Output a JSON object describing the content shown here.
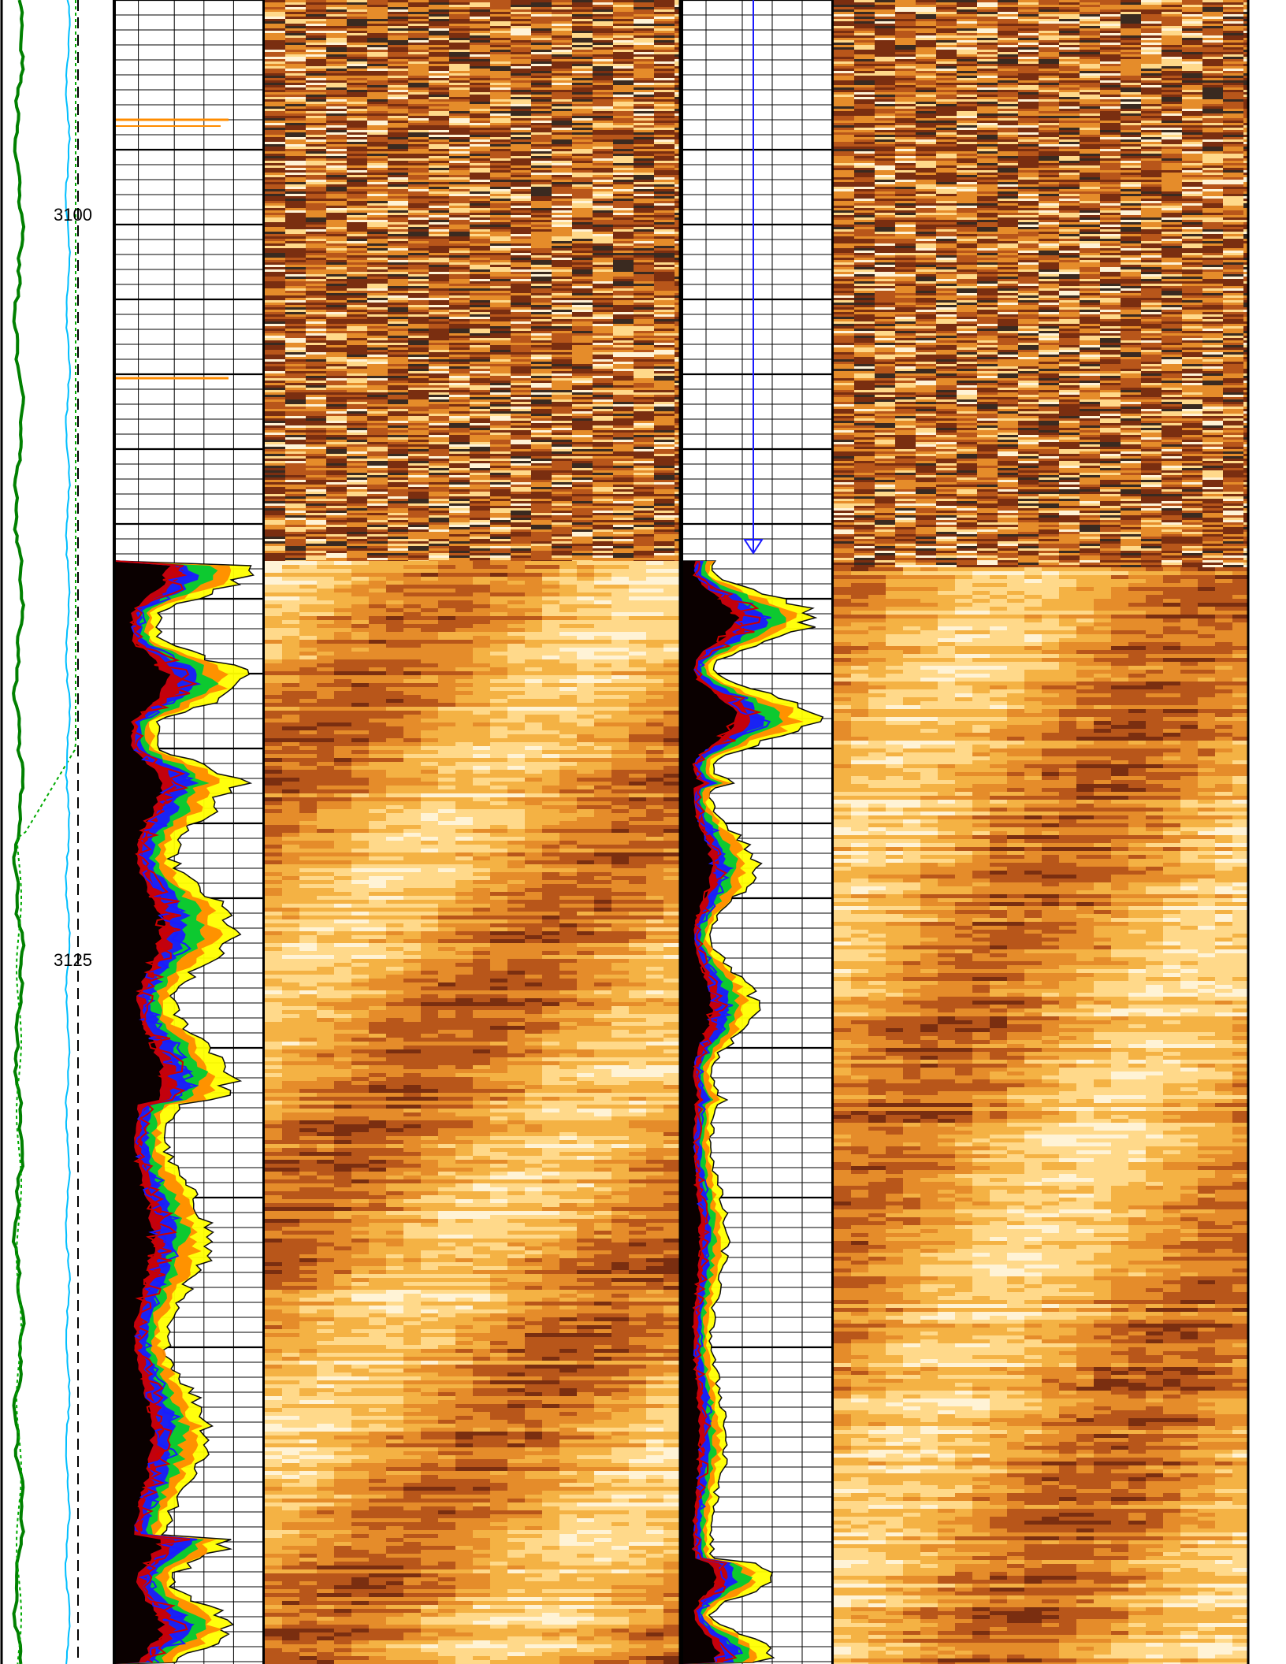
{
  "chart_data": {
    "type": "well-log",
    "depth_axis": {
      "direction": "down",
      "tick_labels": [
        "3100",
        "3125"
      ],
      "depth_range": [
        3093,
        3149
      ]
    },
    "tracks": [
      {
        "id": "curves-left",
        "kind": "curves",
        "grid": true
      },
      {
        "id": "depth",
        "kind": "depth"
      },
      {
        "id": "spectrum-1",
        "kind": "filled-spectrum",
        "grid": true,
        "scale": "log"
      },
      {
        "id": "image-1",
        "kind": "image",
        "palette": "heat"
      },
      {
        "id": "spectrum-2",
        "kind": "filled-spectrum",
        "grid": true,
        "scale": "log"
      },
      {
        "id": "image-2",
        "kind": "image",
        "palette": "heat"
      }
    ],
    "spectrum_colors": [
      "#ffff00",
      "#ff8c00",
      "#00cc33",
      "#1a1aff",
      "#cc0000",
      "#000000",
      "#00bfff"
    ],
    "image_palette": [
      "#3a2a20",
      "#7a2e10",
      "#b8561a",
      "#e58c2a",
      "#f4b244",
      "#ffd98a",
      "#fff3d6"
    ],
    "left_curve_colors": [
      "#008000",
      "#00bfff",
      "#000000"
    ]
  }
}
